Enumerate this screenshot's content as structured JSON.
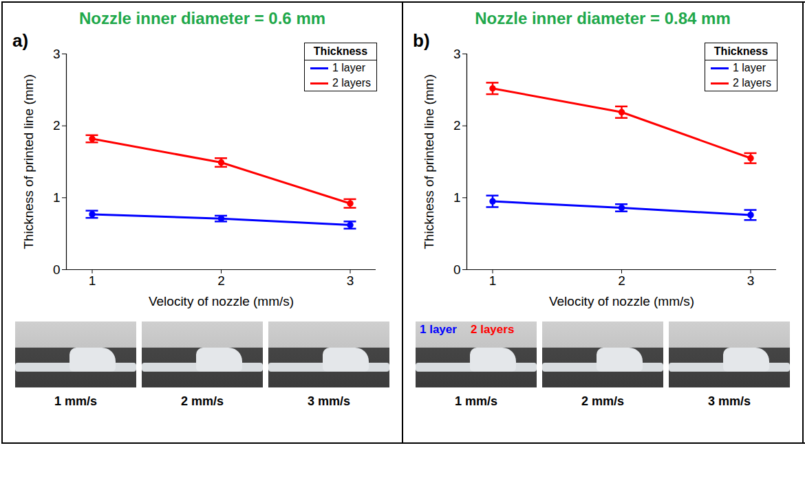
{
  "chart_data": [
    {
      "type": "line",
      "panel_label": "a)",
      "title": "Nozzle inner diameter = 0.6 mm",
      "x_label": "Velocity of nozzle (mm/s)",
      "y_label": "Thickness of printed line (mm)",
      "x": [
        1,
        2,
        3
      ],
      "xlim": [
        0.8,
        3.2
      ],
      "xticks": [
        1,
        2,
        3
      ],
      "ylim": [
        0,
        3
      ],
      "yticks": [
        0,
        1,
        2,
        3
      ],
      "grid": false,
      "legend": "top-right",
      "legend_title": "Thickness",
      "series": [
        {
          "name": "1 layer",
          "color": "#0000ff",
          "marker": "circle",
          "line_style": "solid",
          "values": [
            0.77,
            0.71,
            0.62
          ],
          "errors": [
            0.05,
            0.04,
            0.05
          ]
        },
        {
          "name": "2 layers",
          "color": "#ff0000",
          "marker": "circle",
          "line_style": "solid",
          "values": [
            1.82,
            1.49,
            0.92
          ],
          "errors": [
            0.05,
            0.06,
            0.06
          ]
        }
      ],
      "photos": {
        "captions": [
          "1 mm/s",
          "2 mm/s",
          "3 mm/s"
        ],
        "annotations": []
      }
    },
    {
      "type": "line",
      "panel_label": "b)",
      "title": "Nozzle inner diameter = 0.84 mm",
      "x_label": "Velocity of nozzle (mm/s)",
      "y_label": "Thickness of printed line (mm)",
      "x": [
        1,
        2,
        3
      ],
      "xlim": [
        0.8,
        3.2
      ],
      "xticks": [
        1,
        2,
        3
      ],
      "ylim": [
        0,
        3
      ],
      "yticks": [
        0,
        1,
        2,
        3
      ],
      "grid": false,
      "legend": "top-right",
      "legend_title": "Thickness",
      "series": [
        {
          "name": "1 layer",
          "color": "#0000ff",
          "marker": "circle",
          "line_style": "solid",
          "values": [
            0.95,
            0.86,
            0.76
          ],
          "errors": [
            0.08,
            0.05,
            0.07
          ]
        },
        {
          "name": "2 layers",
          "color": "#ff0000",
          "marker": "circle",
          "line_style": "solid",
          "values": [
            2.52,
            2.19,
            1.55
          ],
          "errors": [
            0.08,
            0.08,
            0.07
          ]
        }
      ],
      "photos": {
        "captions": [
          "1 mm/s",
          "2 mm/s",
          "3 mm/s"
        ],
        "annotations": [
          {
            "text": "1 layer",
            "color": "#0000ff"
          },
          {
            "text": "2 layers",
            "color": "#ff0000"
          }
        ]
      }
    }
  ]
}
